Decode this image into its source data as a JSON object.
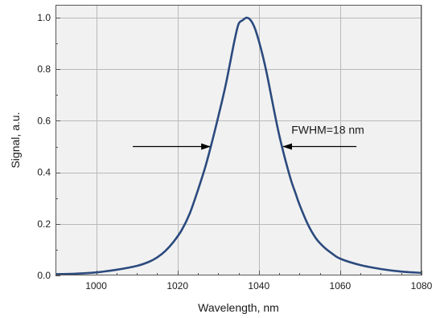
{
  "chart_data": {
    "type": "line",
    "title": "",
    "xlabel": "Wavelength, nm",
    "ylabel": "Signal, a.u.",
    "xlim": [
      990,
      1080
    ],
    "ylim": [
      0,
      1.05
    ],
    "xticks": [
      1000,
      1020,
      1040,
      1060,
      1080
    ],
    "xtick_labels": [
      "1000",
      "1020",
      "1040",
      "1060",
      "1080"
    ],
    "yticks": [
      0.0,
      0.2,
      0.4,
      0.6,
      0.8,
      1.0
    ],
    "ytick_labels": [
      "0.0",
      "0.2",
      "0.4",
      "0.6",
      "0.8",
      "1.0"
    ],
    "grid": true,
    "background": "#f1f1f1",
    "line_color": "#2b4a7e",
    "series": [
      {
        "x": [
          990,
          995,
          1000,
          1005,
          1010,
          1013,
          1015,
          1017,
          1019,
          1021,
          1023,
          1025,
          1027,
          1029,
          1031,
          1032,
          1033,
          1034,
          1035,
          1036,
          1037,
          1038,
          1039,
          1040,
          1041,
          1042,
          1043,
          1044,
          1045,
          1046,
          1047,
          1048,
          1049,
          1050,
          1052,
          1054,
          1056,
          1058,
          1060,
          1065,
          1070,
          1075,
          1080
        ],
        "y": [
          0.005,
          0.007,
          0.012,
          0.022,
          0.037,
          0.053,
          0.07,
          0.095,
          0.13,
          0.175,
          0.24,
          0.33,
          0.43,
          0.55,
          0.68,
          0.75,
          0.83,
          0.91,
          0.975,
          0.99,
          1.0,
          0.99,
          0.96,
          0.91,
          0.85,
          0.78,
          0.7,
          0.62,
          0.545,
          0.48,
          0.42,
          0.365,
          0.32,
          0.275,
          0.2,
          0.145,
          0.11,
          0.085,
          0.065,
          0.04,
          0.025,
          0.015,
          0.01
        ]
      }
    ],
    "annotations": [
      {
        "text": "FWHM=18 nm"
      }
    ],
    "arrows": [
      {
        "from": [
          1009,
          0.5
        ],
        "to": [
          1028,
          0.5
        ],
        "label": ""
      },
      {
        "from": [
          1064,
          0.5
        ],
        "to": [
          1046,
          0.5
        ],
        "label": ""
      }
    ]
  }
}
